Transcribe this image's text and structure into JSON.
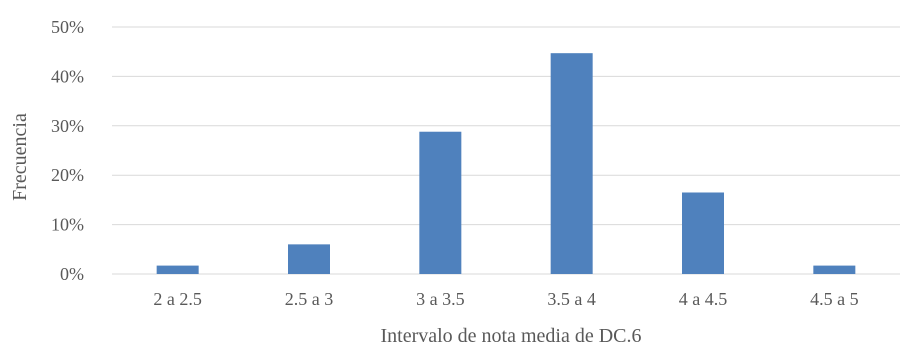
{
  "chart_data": {
    "type": "bar",
    "categories": [
      "2 a 2.5",
      "2.5 a 3",
      "3 a 3.5",
      "3.5 a 4",
      "4 a 4.5",
      "4.5 a 5"
    ],
    "values": [
      1.7,
      6.0,
      28.8,
      44.7,
      16.5,
      1.7
    ],
    "value_unit": "%",
    "xlabel": "Intervalo de nota media de DC.6",
    "ylabel": "Frecuencia",
    "ylim": [
      0,
      50
    ],
    "yticks": [
      0,
      10,
      20,
      30,
      40,
      50
    ],
    "ytick_labels": [
      "0%",
      "10%",
      "20%",
      "30%",
      "40%",
      "50%"
    ],
    "grid": true,
    "legend": "none",
    "bar_color": "#4F81BD",
    "grid_color": "#D9D9D9"
  }
}
